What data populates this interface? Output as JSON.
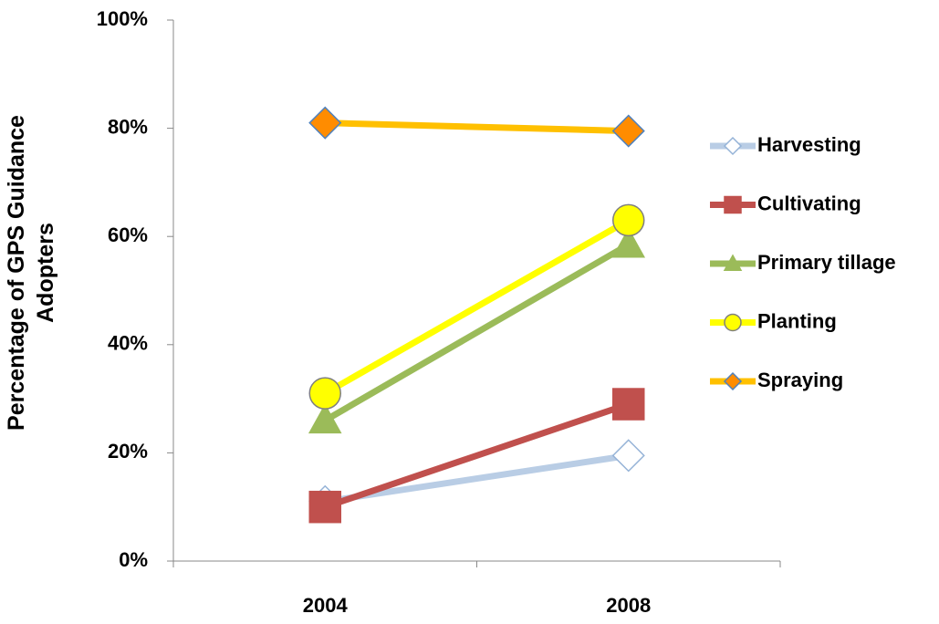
{
  "chart_data": {
    "type": "line",
    "y_label": "Percentage of GPS Guidance Adopters",
    "categories": [
      "2004",
      "2008"
    ],
    "series": [
      {
        "name": "Harvesting",
        "color": "#b9cde5",
        "marker": "diamond",
        "marker_fill": "#ffffff",
        "marker_stroke": "#95b3d7",
        "values": [
          11,
          19.5
        ]
      },
      {
        "name": "Cultivating",
        "color": "#c0504d",
        "marker": "square",
        "marker_fill": "#c0504d",
        "marker_stroke": "#c0504d",
        "values": [
          10,
          29
        ]
      },
      {
        "name": "Primary tillage",
        "color": "#9bbb59",
        "marker": "triangle",
        "marker_fill": "#9bbb59",
        "marker_stroke": "#9bbb59",
        "values": [
          26,
          58.5
        ]
      },
      {
        "name": "Planting",
        "color": "#ffff00",
        "marker": "circle",
        "marker_fill": "#ffff00",
        "marker_stroke": "#7f7f7f",
        "values": [
          31,
          63
        ]
      },
      {
        "name": "Spraying",
        "color": "#ffc000",
        "marker": "diamond",
        "marker_fill": "#ff8c00",
        "marker_stroke": "#4f81bd",
        "values": [
          81,
          79.5
        ]
      }
    ],
    "ylim": [
      0,
      100
    ],
    "yticks": [
      {
        "value": 0,
        "label": "0%"
      },
      {
        "value": 20,
        "label": "20%"
      },
      {
        "value": 40,
        "label": "40%"
      },
      {
        "value": 60,
        "label": "60%"
      },
      {
        "value": 80,
        "label": "80%"
      },
      {
        "value": 100,
        "label": "100%"
      }
    ],
    "grid": false,
    "legend": "right"
  }
}
